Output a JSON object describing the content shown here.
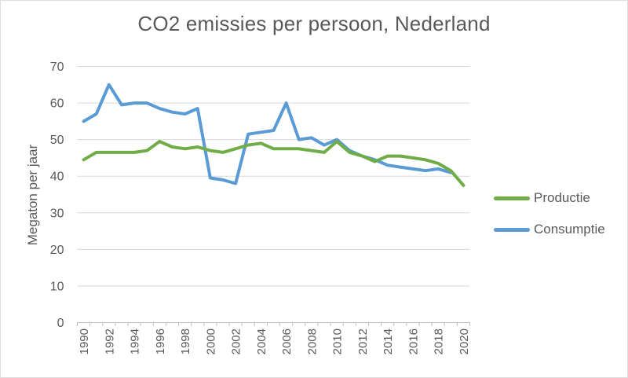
{
  "chart_data": {
    "type": "line",
    "title": "CO2 emissies per persoon, Nederland",
    "ylabel": "Megaton per jaar",
    "xlabel": "",
    "ylim": [
      0,
      70
    ],
    "ytick_step": 10,
    "xtick_every": 2,
    "grid": true,
    "legend_position": "right",
    "categories": [
      1990,
      1991,
      1992,
      1993,
      1994,
      1995,
      1996,
      1997,
      1998,
      1999,
      2000,
      2001,
      2002,
      2003,
      2004,
      2005,
      2006,
      2007,
      2008,
      2009,
      2010,
      2011,
      2012,
      2013,
      2014,
      2015,
      2016,
      2017,
      2018,
      2019,
      2020
    ],
    "series": [
      {
        "name": "Productie",
        "color": "#70AD47",
        "values": [
          44.5,
          46.5,
          46.5,
          46.5,
          46.5,
          47,
          49.5,
          48,
          47.5,
          48,
          47,
          46.5,
          47.5,
          48.5,
          49,
          47.5,
          47.5,
          47.5,
          47,
          46.5,
          49.5,
          46.5,
          45.5,
          44,
          45.5,
          45.5,
          45,
          44.5,
          43.5,
          41.5,
          37.5
        ]
      },
      {
        "name": "Consumptie",
        "color": "#5B9BD5",
        "values": [
          55,
          57,
          65,
          59.5,
          60,
          60,
          58.5,
          57.5,
          57,
          58.5,
          39.5,
          39,
          38,
          51.5,
          52,
          52.5,
          60,
          50,
          50.5,
          48.5,
          50,
          47,
          45.5,
          44.5,
          43,
          42.5,
          42,
          41.5,
          42,
          41,
          null
        ]
      }
    ]
  },
  "styles": {
    "title_color": "#595959",
    "axis_text_color": "#595959",
    "gridline_color": "#D9D9D9",
    "axis_line_color": "#BFBFBF",
    "background": "#FFFFFF"
  }
}
